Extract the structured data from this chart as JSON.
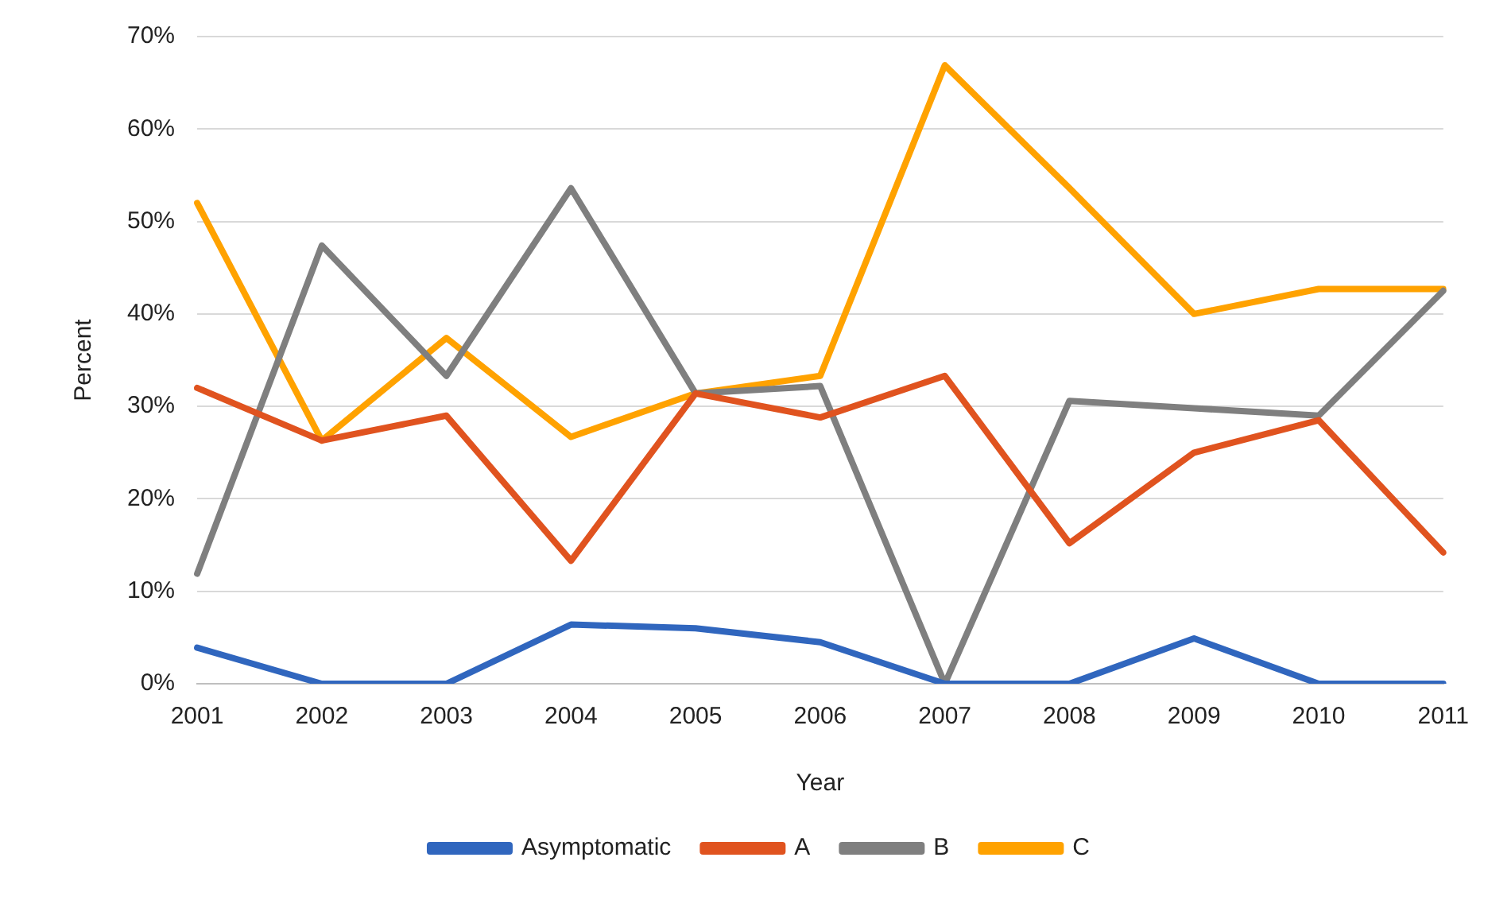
{
  "chart_data": {
    "type": "line",
    "xlabel": "Year",
    "ylabel": "Percent",
    "categories": [
      "2001",
      "2002",
      "2003",
      "2004",
      "2005",
      "2006",
      "2007",
      "2008",
      "2009",
      "2010",
      "2011"
    ],
    "series": [
      {
        "name": "Asymptomatic",
        "color": "#3066be",
        "values": [
          3.9,
          0,
          0,
          6.4,
          6,
          4.5,
          0,
          0,
          4.9,
          0,
          0
        ]
      },
      {
        "name": "A",
        "color": "#e0531f",
        "values": [
          32,
          26.3,
          29,
          13.3,
          31.4,
          28.8,
          33.3,
          15.2,
          25,
          28.5,
          14.2
        ]
      },
      {
        "name": "B",
        "color": "#7f7f7f",
        "values": [
          11.9,
          47.4,
          33.3,
          53.6,
          31.4,
          32.2,
          0,
          30.6,
          29.8,
          29,
          42.5
        ]
      },
      {
        "name": "C",
        "color": "#ffa200",
        "values": [
          52,
          26.3,
          37.4,
          26.7,
          31.4,
          33.3,
          66.9,
          53.6,
          40,
          42.7,
          42.7
        ]
      }
    ],
    "ylim": [
      0,
      70
    ],
    "yticks": [
      {
        "value": 0,
        "label": "0%"
      },
      {
        "value": 10,
        "label": "10%"
      },
      {
        "value": 20,
        "label": "20%"
      },
      {
        "value": 30,
        "label": "30%"
      },
      {
        "value": 40,
        "label": "40%"
      },
      {
        "value": 50,
        "label": "50%"
      },
      {
        "value": 60,
        "label": "60%"
      },
      {
        "value": 70,
        "label": "70%"
      }
    ],
    "grid": "y",
    "legend": "bottom",
    "marker": "none",
    "line_style": "solid"
  }
}
